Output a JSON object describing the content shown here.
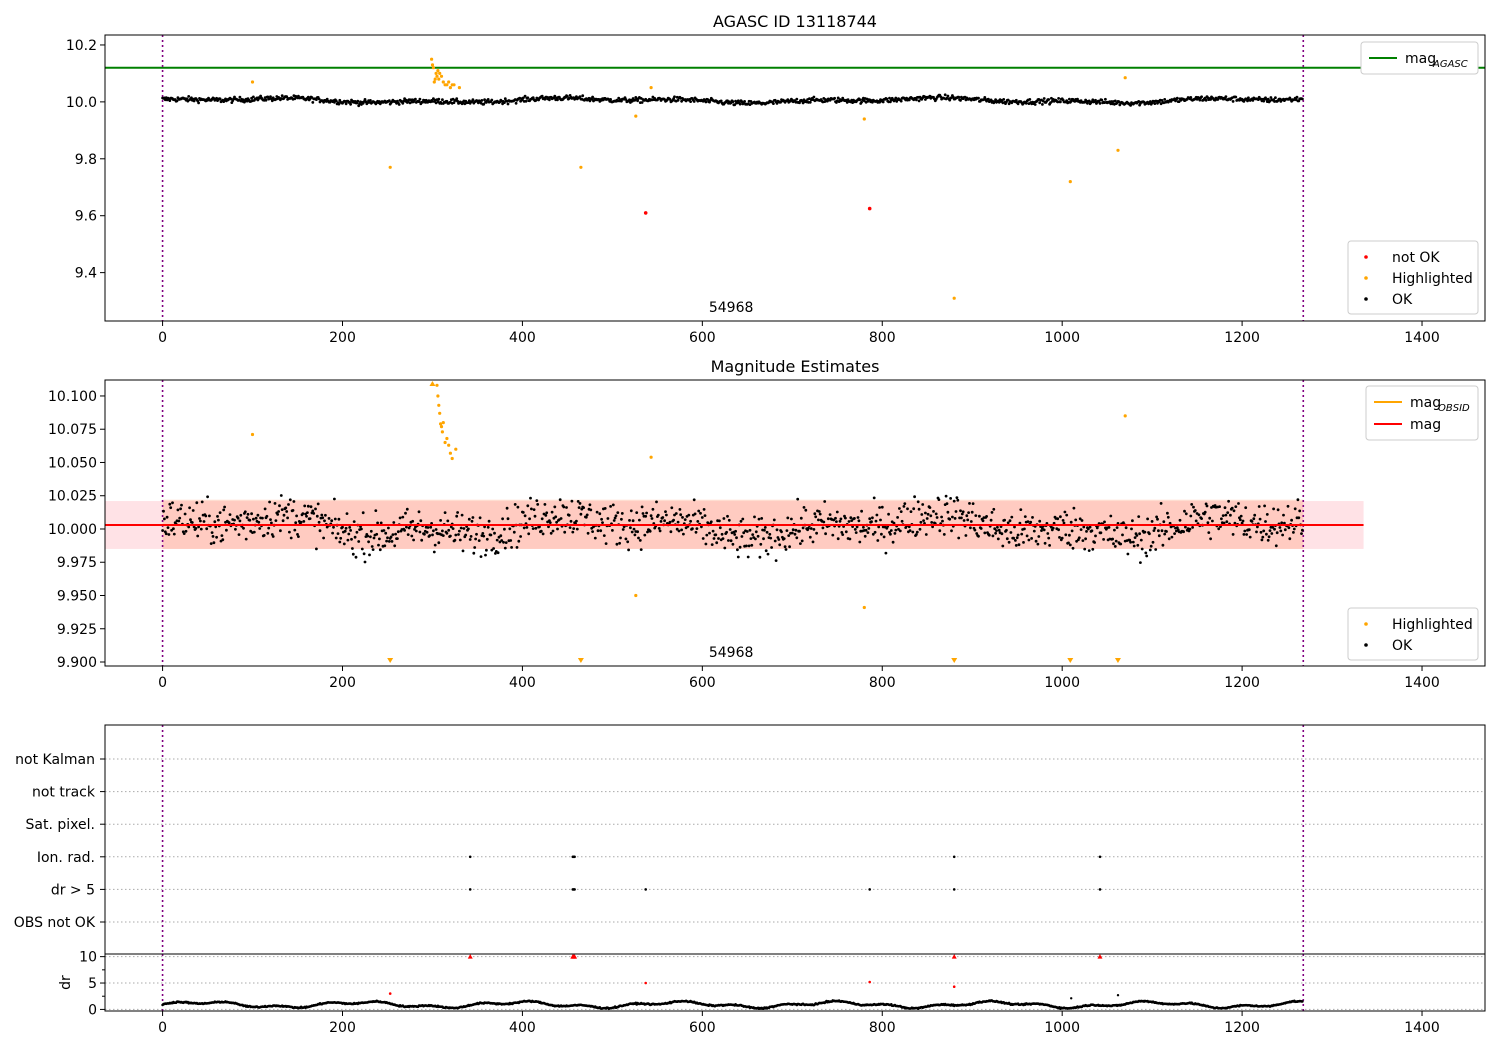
{
  "chart_data": [
    {
      "id": "agasc",
      "type": "scatter",
      "title": "AGASC ID 13118744",
      "xlim": [
        -64,
        1470
      ],
      "ylim": [
        9.23,
        10.235
      ],
      "xticks": [
        0,
        200,
        400,
        600,
        800,
        1000,
        1200,
        1400
      ],
      "yticks": [
        9.4,
        9.6,
        9.8,
        10.0,
        10.2
      ],
      "ytick_labels": [
        "9.4",
        "9.6",
        "9.8",
        "10.0",
        "10.2"
      ],
      "hlines": [
        {
          "name": "mag_AGASC",
          "y": 10.12,
          "color": "#008000"
        }
      ],
      "vlines": [
        0,
        1268
      ],
      "obs_label": {
        "text": "54968",
        "x": 632
      },
      "ok_series": {
        "name": "OK",
        "color": "#000000",
        "n": 1268,
        "mean": 10.005,
        "noise": 0.011
      },
      "highlighted": {
        "name": "Highlighted",
        "color": "#ffa500",
        "x": [
          100,
          253,
          299,
          300,
          301,
          302,
          303,
          304,
          305,
          306,
          307,
          308,
          310,
          312,
          314,
          316,
          318,
          320,
          322,
          324,
          330,
          465,
          526,
          543,
          780,
          880,
          1009,
          1062,
          1070
        ],
        "y": [
          10.07,
          9.77,
          10.15,
          10.13,
          10.12,
          10.07,
          10.08,
          10.1,
          10.09,
          10.11,
          10.08,
          10.1,
          10.09,
          10.07,
          10.06,
          10.06,
          10.07,
          10.05,
          10.06,
          10.06,
          10.05,
          9.77,
          9.95,
          10.05,
          9.94,
          9.31,
          9.72,
          9.83,
          10.085
        ]
      },
      "not_ok": {
        "name": "not OK",
        "color": "#ff0000",
        "x": [
          537,
          786
        ],
        "y": [
          9.61,
          9.625
        ]
      },
      "legend_lines": [
        {
          "label_main": "mag",
          "label_sub": "AGASC",
          "color": "#008000"
        }
      ],
      "legend_points": [
        {
          "label": "not OK",
          "color": "#ff0000"
        },
        {
          "label": "Highlighted",
          "color": "#ffa500"
        },
        {
          "label": "OK",
          "color": "#000000"
        }
      ]
    },
    {
      "id": "estimates",
      "type": "scatter",
      "title": "Magnitude Estimates",
      "xlim": [
        -64,
        1470
      ],
      "ylim": [
        9.897,
        10.112
      ],
      "xticks": [
        0,
        200,
        400,
        600,
        800,
        1000,
        1200,
        1400
      ],
      "yticks": [
        9.9,
        9.925,
        9.95,
        9.975,
        10.0,
        10.025,
        10.05,
        10.075,
        10.1
      ],
      "ytick_labels": [
        "9.900",
        "9.925",
        "9.950",
        "9.975",
        "10.000",
        "10.025",
        "10.050",
        "10.075",
        "10.100"
      ],
      "vlines": [
        0,
        1268
      ],
      "obs_label": {
        "text": "54968",
        "x": 632
      },
      "bands": [
        {
          "y0": 9.985,
          "y1": 10.021,
          "x0": -64,
          "x1": 1335,
          "color": "#ffb6c1",
          "opacity": 0.4
        },
        {
          "y0": 9.985,
          "y1": 10.022,
          "x0": 0,
          "x1": 1268,
          "color": "#ffa07a",
          "opacity": 0.35
        }
      ],
      "mean_lines": [
        {
          "name": "mag_OBSID",
          "y": 10.003,
          "x0": 0,
          "x1": 1268,
          "color": "#ffa500"
        },
        {
          "name": "mag",
          "y": 10.003,
          "x0": -64,
          "x1": 1335,
          "color": "#ff0000"
        }
      ],
      "ok_series": {
        "name": "OK",
        "color": "#000000",
        "n": 1268,
        "mean": 10.002,
        "noise": 0.018
      },
      "highlighted": {
        "name": "Highlighted",
        "color": "#ffa500",
        "x": [
          100,
          305,
          306,
          307,
          308,
          309,
          310,
          311,
          312,
          314,
          316,
          318,
          320,
          322,
          326,
          543,
          526,
          780,
          1070
        ],
        "y": [
          10.071,
          10.108,
          10.1,
          10.093,
          10.087,
          10.079,
          10.077,
          10.073,
          10.08,
          10.065,
          10.068,
          10.063,
          10.057,
          10.053,
          10.06,
          10.054,
          9.95,
          9.941,
          10.085
        ]
      },
      "markers_down": {
        "x": [
          253,
          465,
          880,
          1009,
          1062
        ],
        "y": 9.9
      },
      "markers_up": {
        "x": [
          300
        ],
        "y": 10.105
      },
      "legend_lines": [
        {
          "label_main": "mag",
          "label_sub": "OBSID",
          "color": "#ffa500"
        },
        {
          "label_main": "mag",
          "label_sub": "",
          "color": "#ff0000"
        }
      ],
      "legend_points": [
        {
          "label": "Highlighted",
          "color": "#ffa500"
        },
        {
          "label": "OK",
          "color": "#000000"
        }
      ]
    },
    {
      "id": "flags",
      "type": "scatter",
      "xlim": [
        -64,
        1470
      ],
      "categories": [
        "not Kalman",
        "not track",
        "Sat. pixel.",
        "Ion. rad.",
        "dr > 5",
        "OBS not OK"
      ],
      "vlines": [
        0,
        1268
      ],
      "events": {
        "Ion. rad.": [
          342,
          456,
          457,
          458,
          880,
          1042
        ],
        "dr > 5": [
          342,
          456,
          457,
          458,
          537,
          786,
          880,
          1042
        ]
      }
    },
    {
      "id": "dr",
      "type": "scatter",
      "ylabel": "dr",
      "xlim": [
        -64,
        1470
      ],
      "ylim": [
        -0.3,
        10.5
      ],
      "xticks": [
        0,
        200,
        400,
        600,
        800,
        1000,
        1200,
        1400
      ],
      "yticks": [
        0,
        5,
        10
      ],
      "ytick_labels": [
        "0",
        "5",
        "10"
      ],
      "vlines": [
        0,
        1268
      ],
      "dr_series": {
        "name": "dr",
        "color": "#000000",
        "n": 1268
      },
      "outliers": {
        "color": "#ff0000",
        "x": [
          253,
          537,
          786,
          880,
          342,
          456,
          457,
          458,
          880,
          1042
        ],
        "y": [
          3,
          5,
          5.2,
          4.3,
          10,
          10,
          10,
          10,
          10,
          10
        ]
      },
      "black_extras": {
        "x": [
          1010,
          1062
        ],
        "y": [
          2.1,
          2.7
        ]
      }
    }
  ]
}
